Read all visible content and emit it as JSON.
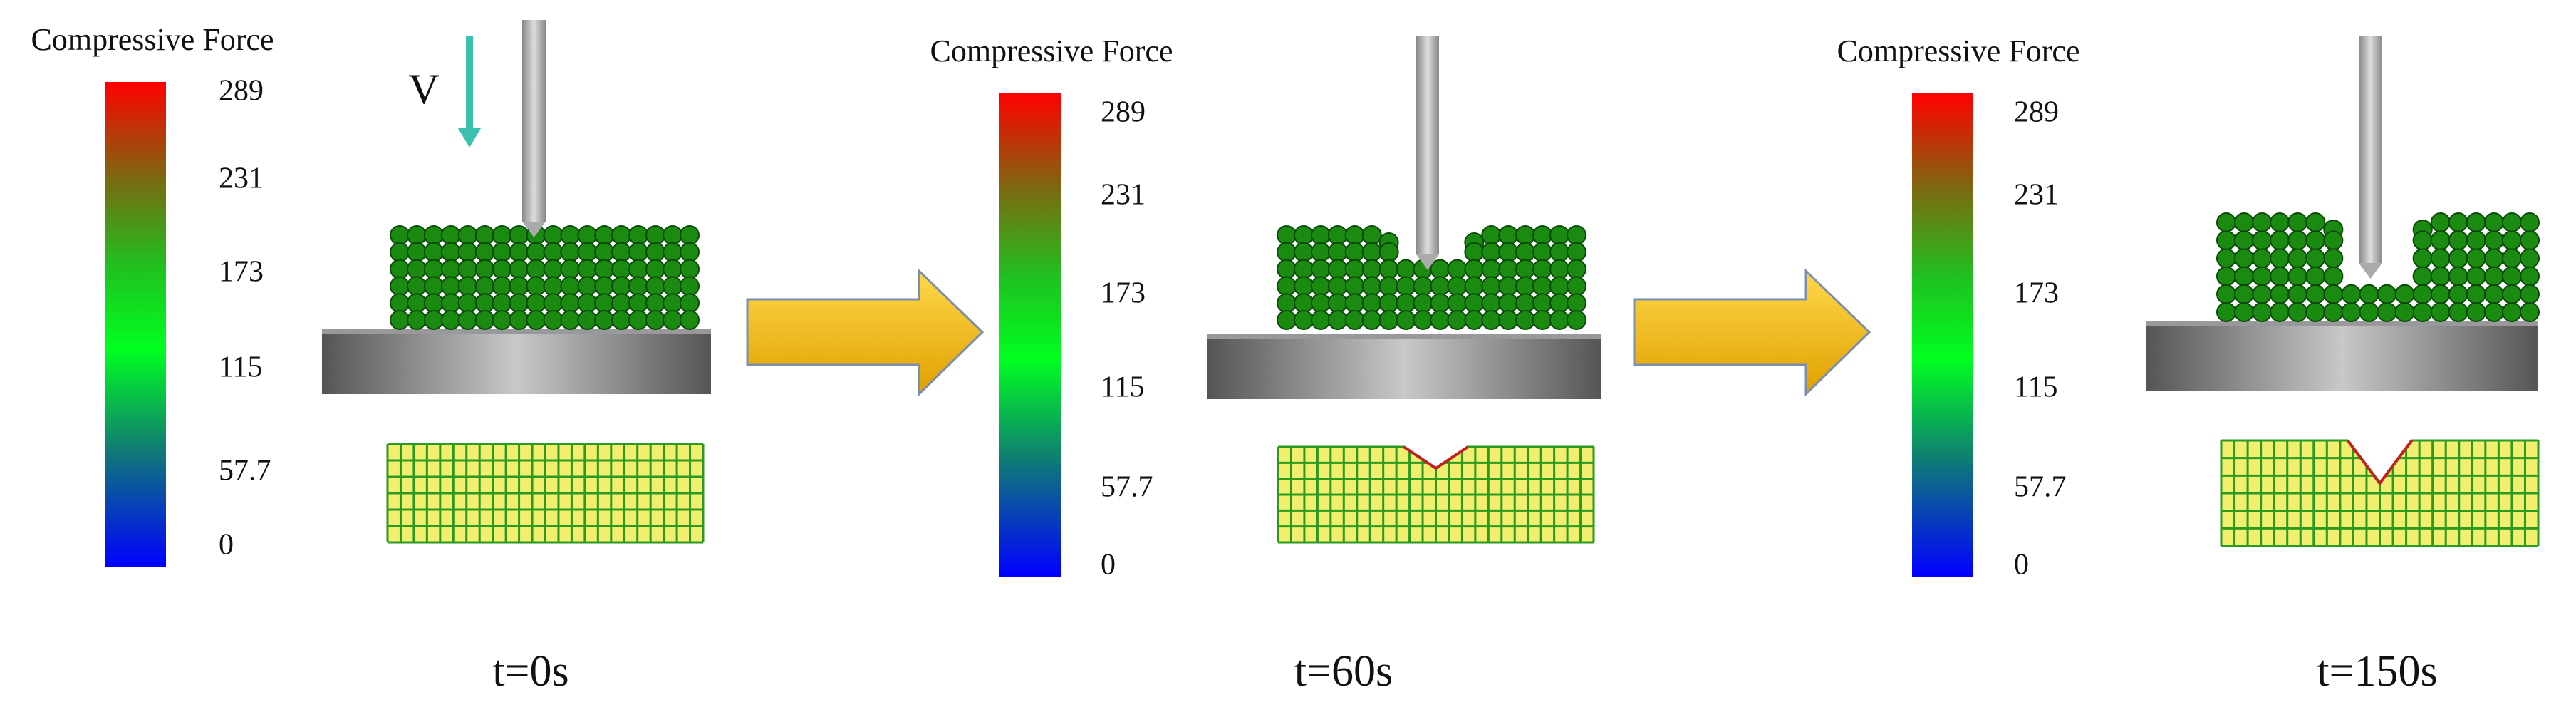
{
  "velocity_label": "V",
  "panels": [
    {
      "colorbar": {
        "title": "Compressive Force",
        "ticks": [
          "289",
          "231",
          "173",
          "115",
          "57.7",
          "0"
        ]
      },
      "time": "t=0s"
    },
    {
      "colorbar": {
        "title": "Compressive Force",
        "ticks": [
          "289",
          "231",
          "173",
          "115",
          "57.7",
          "0"
        ]
      },
      "time": "t=60s"
    },
    {
      "colorbar": {
        "title": "Compressive Force",
        "ticks": [
          "289",
          "231",
          "173",
          "115",
          "57.7",
          "0"
        ]
      },
      "time": "t=150s"
    }
  ]
}
